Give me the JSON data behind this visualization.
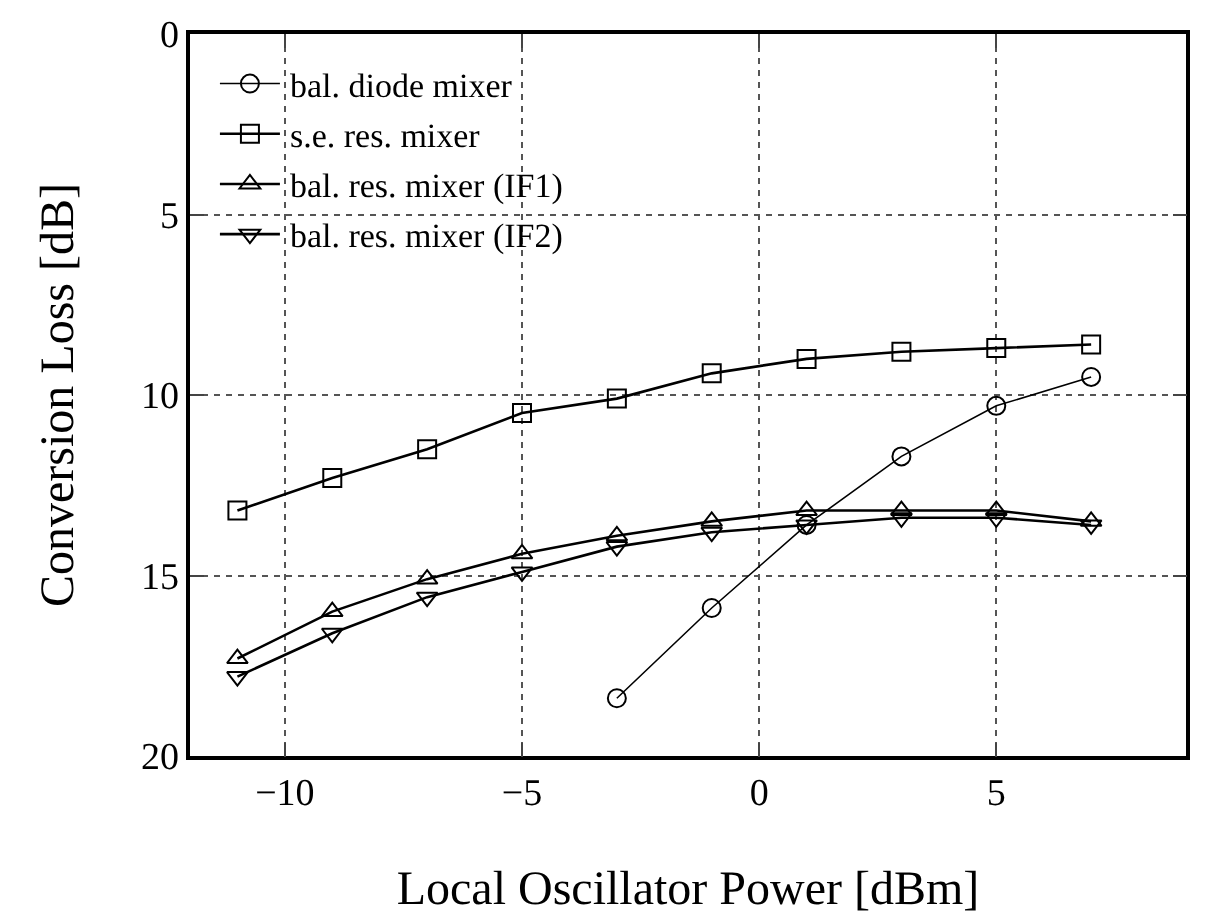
{
  "chart_data": {
    "type": "line",
    "xlabel": "Local Oscillator Power [dBm]",
    "ylabel": "Conversion Loss [dB]",
    "x": [
      -11,
      -9,
      -7,
      -5,
      -3,
      -1,
      1,
      3,
      5,
      7
    ],
    "series": [
      {
        "name": "bal. diode mixer",
        "color": "#000000",
        "marker": "circle",
        "values": [
          null,
          null,
          null,
          null,
          18.4,
          15.9,
          13.6,
          11.7,
          10.3,
          9.5
        ]
      },
      {
        "name": "s.e. res. mixer",
        "color": "#000000",
        "marker": "square",
        "values": [
          13.2,
          12.3,
          11.5,
          10.5,
          10.1,
          9.4,
          9.0,
          8.8,
          8.7,
          8.6
        ]
      },
      {
        "name": "bal. res. mixer (IF1)",
        "color": "#000000",
        "marker": "triangle",
        "values": [
          17.3,
          16.0,
          15.1,
          14.4,
          13.9,
          13.5,
          13.2,
          13.2,
          13.2,
          13.5
        ]
      },
      {
        "name": "bal. res. mixer (IF2)",
        "color": "#000000",
        "marker": "triangle-down",
        "values": [
          17.8,
          16.6,
          15.6,
          14.9,
          14.2,
          13.8,
          13.6,
          13.4,
          13.4,
          13.6
        ]
      }
    ],
    "xlim": [
      -12,
      9
    ],
    "xticks": [
      -10,
      -5,
      0,
      5
    ],
    "ylim": [
      20,
      0
    ],
    "yticks": [
      0,
      5,
      10,
      15,
      20
    ],
    "grid": true,
    "legend": "top left",
    "line_style": "solid"
  }
}
